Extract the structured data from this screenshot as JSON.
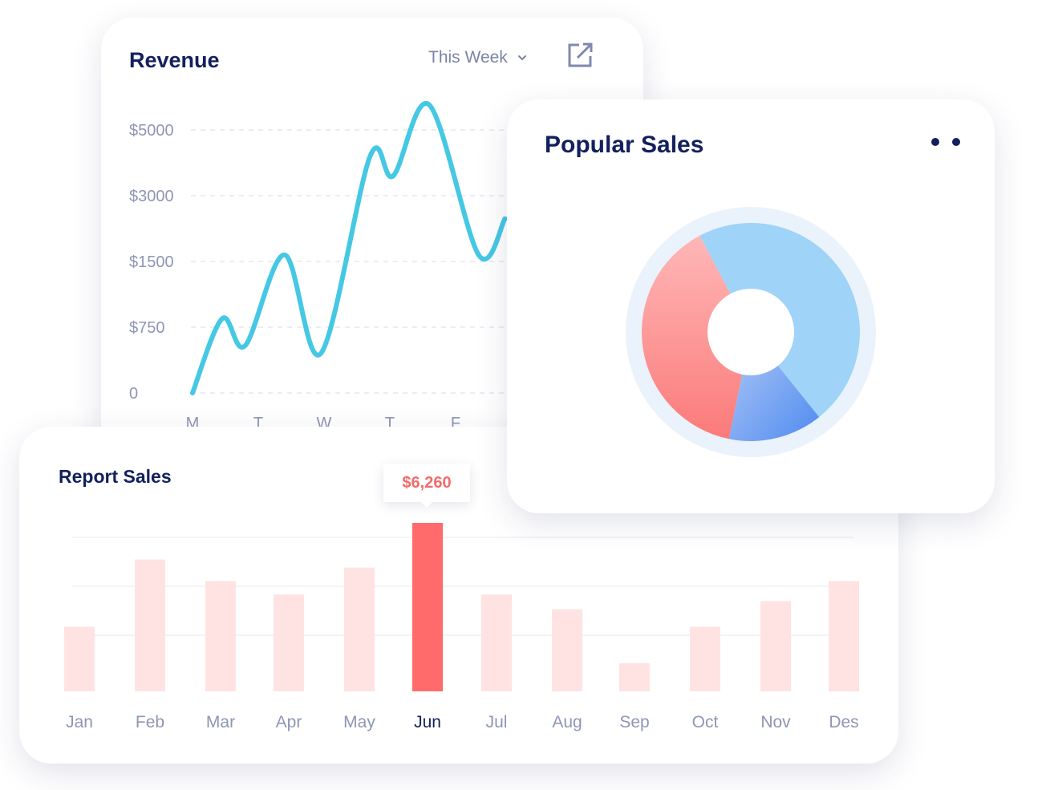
{
  "revenue": {
    "title": "Revenue",
    "period_label": "This Week",
    "icons": {
      "dropdown": "chevron-down-icon",
      "export": "external-link-icon"
    },
    "chart_data": {
      "type": "line",
      "title": "Revenue",
      "y_ticks": [
        "$5000",
        "$3000",
        "$1500",
        "$750",
        "0"
      ],
      "x": [
        "M",
        "T",
        "W",
        "T",
        "F"
      ],
      "line_points": [
        [
          0,
          0
        ],
        [
          0.45,
          1.13
        ],
        [
          0.8,
          0.72
        ],
        [
          1.4,
          2.1
        ],
        [
          1.95,
          0.6
        ],
        [
          2.7,
          3.6
        ],
        [
          3.05,
          3.3
        ],
        [
          3.6,
          4.38
        ],
        [
          4.35,
          2.1
        ],
        [
          4.75,
          2.65
        ]
      ],
      "grid": true,
      "color": "#45c8e3"
    }
  },
  "popular": {
    "title": "Popular Sales",
    "icons": {
      "menu": "more-dots-icon"
    },
    "chart_data": {
      "type": "pie",
      "slices": [
        {
          "value": 47,
          "color": "#9fd3f7"
        },
        {
          "value": 14,
          "color": "#6a9ef2"
        },
        {
          "value": 39,
          "color": "#fb8c8c"
        }
      ],
      "donut": true
    }
  },
  "report": {
    "title": "Report Sales",
    "tooltip": "$6,260",
    "chart_data": {
      "type": "bar",
      "categories": [
        "Jan",
        "Feb",
        "Mar",
        "Apr",
        "May",
        "Jun",
        "Jul",
        "Aug",
        "Sep",
        "Oct",
        "Nov",
        "Des"
      ],
      "values": [
        2400,
        4900,
        4100,
        3600,
        4600,
        6260,
        3600,
        3050,
        1050,
        2400,
        3350,
        4100
      ],
      "ylim": [
        0,
        6260
      ],
      "highlight_index": 5,
      "bar_color": "#ffe3e3",
      "highlight_color": "#ff6b6b",
      "grid": true
    }
  }
}
